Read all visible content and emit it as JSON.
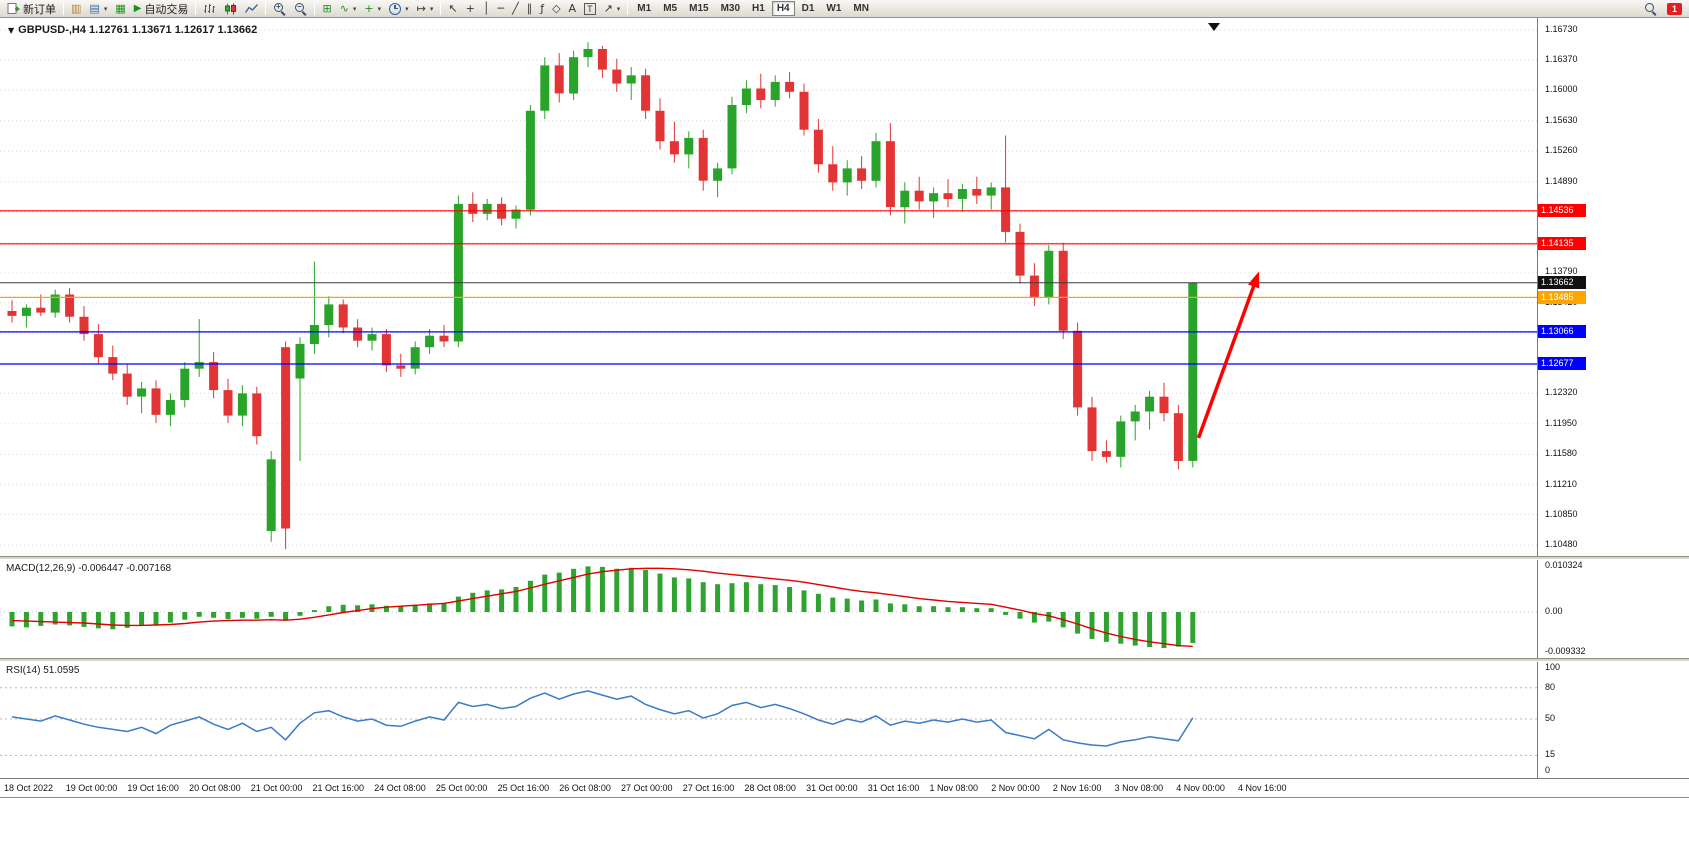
{
  "toolbar": {
    "new_order": "新订单",
    "auto_trading": "自动交易",
    "timeframes": [
      "M1",
      "M5",
      "M15",
      "M30",
      "H1",
      "H4",
      "D1",
      "W1",
      "MN"
    ],
    "active_timeframe": "H4",
    "notification_count": "1",
    "icons": {
      "chart_window": "▥",
      "profiles": "▤",
      "data_window": "▦",
      "play": "▶",
      "tile_windows": "⊞",
      "indicators": "∿",
      "add_indicator": "+",
      "dropdown": "▾",
      "chart_shift": "↦",
      "cursor": "↖",
      "crosshair": "+",
      "vertical_line": "│",
      "horizontal_line": "─",
      "trendline": "╱",
      "channel": "∥",
      "fibonacci": "ƒ",
      "shapes": "◇",
      "text": "A",
      "text_label": "T",
      "arrows": "↗"
    }
  },
  "chart": {
    "title": "GBPUSD-,H4 1.12761 1.13671 1.12617 1.13662"
  },
  "macd": {
    "label": "MACD(12,26,9) -0.006447 -0.007168"
  },
  "rsi": {
    "label": "RSI(14) 51.0595"
  },
  "chart_data": [
    {
      "type": "candlestick",
      "symbol": "GBPUSD-",
      "timeframe": "H4",
      "open": "1.12761",
      "high": "1.13671",
      "low": "1.12617",
      "close": "1.13662",
      "ylim": [
        1.1048,
        1.1673
      ],
      "y_ticks": [
        "1.16730",
        "1.16370",
        "1.16000",
        "1.15630",
        "1.15260",
        "1.14890",
        "1.14520",
        "1.14150",
        "1.13790",
        "1.13420",
        "1.13050",
        "1.12680",
        "1.12320",
        "1.11950",
        "1.11580",
        "1.11210",
        "1.10850",
        "1.10480"
      ],
      "colors": {
        "up": "#29A329",
        "down": "#E23434",
        "grid": "#DCDCDC"
      },
      "levels": [
        {
          "label": "1.14536",
          "price": 1.14536,
          "color": "#FF0000"
        },
        {
          "label": "1.14135",
          "price": 1.14135,
          "color": "#FF0000"
        },
        {
          "label": "1.13662",
          "price": 1.13662,
          "color": "#3C3C3C",
          "badge": "#101010",
          "current": true
        },
        {
          "label": "1.13485",
          "price": 1.13485,
          "color": "#FFA500"
        },
        {
          "label": "1.13066",
          "price": 1.13066,
          "color": "#0000FF"
        },
        {
          "label": "1.12677",
          "price": 1.12677,
          "color": "#0000FF"
        }
      ],
      "annotation_arrow": {
        "color": "#FF0000",
        "from_bar": 82.4,
        "from_price": 1.1178,
        "to_bar": 86.6,
        "to_price": 1.138
      },
      "x_labels": [
        "18 Oct 2022",
        "19 Oct 00:00",
        "19 Oct 16:00",
        "20 Oct 08:00",
        "21 Oct 00:00",
        "21 Oct 16:00",
        "24 Oct 08:00",
        "25 Oct 00:00",
        "25 Oct 16:00",
        "26 Oct 08:00",
        "27 Oct 00:00",
        "27 Oct 16:00",
        "28 Oct 08:00",
        "31 Oct 00:00",
        "31 Oct 16:00",
        "1 Nov 08:00",
        "2 Nov 00:00",
        "2 Nov 16:00",
        "3 Nov 08:00",
        "4 Nov 00:00",
        "4 Nov 16:00"
      ],
      "candles": [
        [
          1.1332,
          1.1345,
          1.1318,
          1.1326
        ],
        [
          1.1326,
          1.134,
          1.1312,
          1.1336
        ],
        [
          1.1336,
          1.1352,
          1.1326,
          1.133
        ],
        [
          1.133,
          1.1358,
          1.1324,
          1.1352
        ],
        [
          1.1352,
          1.136,
          1.1318,
          1.1325
        ],
        [
          1.1325,
          1.1338,
          1.1296,
          1.1304
        ],
        [
          1.1304,
          1.1316,
          1.1268,
          1.1276
        ],
        [
          1.1276,
          1.129,
          1.1248,
          1.1256
        ],
        [
          1.1256,
          1.1268,
          1.1218,
          1.1228
        ],
        [
          1.1228,
          1.1246,
          1.1208,
          1.1238
        ],
        [
          1.1238,
          1.1248,
          1.1196,
          1.1206
        ],
        [
          1.1206,
          1.1232,
          1.1192,
          1.1224
        ],
        [
          1.1224,
          1.127,
          1.1215,
          1.1262
        ],
        [
          1.1262,
          1.1322,
          1.1252,
          1.127
        ],
        [
          1.127,
          1.1282,
          1.1226,
          1.1236
        ],
        [
          1.1236,
          1.125,
          1.1196,
          1.1205
        ],
        [
          1.1205,
          1.1242,
          1.1192,
          1.1232
        ],
        [
          1.1232,
          1.124,
          1.117,
          1.118
        ],
        [
          1.1065,
          1.1162,
          1.1052,
          1.1152
        ],
        [
          1.1288,
          1.1295,
          1.1043,
          1.1068
        ],
        [
          1.125,
          1.13,
          1.115,
          1.1292
        ],
        [
          1.1292,
          1.1392,
          1.128,
          1.1315
        ],
        [
          1.1315,
          1.135,
          1.13,
          1.134
        ],
        [
          1.134,
          1.1346,
          1.1305,
          1.1312
        ],
        [
          1.1312,
          1.1322,
          1.1288,
          1.1296
        ],
        [
          1.1296,
          1.1312,
          1.1284,
          1.1304
        ],
        [
          1.1304,
          1.131,
          1.1258,
          1.1266
        ],
        [
          1.1266,
          1.128,
          1.1252,
          1.1262
        ],
        [
          1.1262,
          1.1295,
          1.1255,
          1.1288
        ],
        [
          1.1288,
          1.131,
          1.128,
          1.1302
        ],
        [
          1.1302,
          1.1315,
          1.1288,
          1.1295
        ],
        [
          1.1295,
          1.1472,
          1.1288,
          1.1462
        ],
        [
          1.1462,
          1.1476,
          1.144,
          1.145
        ],
        [
          1.145,
          1.1468,
          1.1442,
          1.1462
        ],
        [
          1.1462,
          1.147,
          1.1436,
          1.1444
        ],
        [
          1.1444,
          1.146,
          1.1432,
          1.1455
        ],
        [
          1.1455,
          1.1582,
          1.1448,
          1.1575
        ],
        [
          1.1575,
          1.164,
          1.1565,
          1.163
        ],
        [
          1.163,
          1.1645,
          1.1585,
          1.1596
        ],
        [
          1.1596,
          1.1648,
          1.1588,
          1.164
        ],
        [
          1.164,
          1.1658,
          1.1628,
          1.165
        ],
        [
          1.165,
          1.1654,
          1.1615,
          1.1625
        ],
        [
          1.1625,
          1.1638,
          1.1598,
          1.1608
        ],
        [
          1.1608,
          1.1628,
          1.1588,
          1.1618
        ],
        [
          1.1618,
          1.1626,
          1.1565,
          1.1575
        ],
        [
          1.1575,
          1.159,
          1.1528,
          1.1538
        ],
        [
          1.1538,
          1.1562,
          1.1512,
          1.1522
        ],
        [
          1.1522,
          1.155,
          1.1505,
          1.1542
        ],
        [
          1.1542,
          1.1552,
          1.1478,
          1.149
        ],
        [
          1.149,
          1.1512,
          1.147,
          1.1505
        ],
        [
          1.1505,
          1.1592,
          1.1498,
          1.1582
        ],
        [
          1.1582,
          1.1612,
          1.1572,
          1.1602
        ],
        [
          1.1602,
          1.162,
          1.1578,
          1.1588
        ],
        [
          1.1588,
          1.1618,
          1.158,
          1.161
        ],
        [
          1.161,
          1.1622,
          1.159,
          1.1598
        ],
        [
          1.1598,
          1.1608,
          1.1545,
          1.1552
        ],
        [
          1.1552,
          1.1565,
          1.15,
          1.151
        ],
        [
          1.151,
          1.1532,
          1.1478,
          1.1488
        ],
        [
          1.1488,
          1.1515,
          1.1472,
          1.1505
        ],
        [
          1.1505,
          1.152,
          1.148,
          1.149
        ],
        [
          1.149,
          1.1548,
          1.1482,
          1.1538
        ],
        [
          1.1538,
          1.156,
          1.1448,
          1.1458
        ],
        [
          1.1458,
          1.1488,
          1.1438,
          1.1478
        ],
        [
          1.1478,
          1.1495,
          1.1455,
          1.1465
        ],
        [
          1.1465,
          1.1482,
          1.1445,
          1.1475
        ],
        [
          1.1475,
          1.1492,
          1.1458,
          1.1468
        ],
        [
          1.1468,
          1.1486,
          1.1452,
          1.148
        ],
        [
          1.148,
          1.1495,
          1.1462,
          1.1472
        ],
        [
          1.1472,
          1.1488,
          1.1455,
          1.1482
        ],
        [
          1.1482,
          1.1545,
          1.1415,
          1.1428
        ],
        [
          1.1428,
          1.1438,
          1.1365,
          1.1375
        ],
        [
          1.1375,
          1.139,
          1.1338,
          1.1348
        ],
        [
          1.1348,
          1.1412,
          1.134,
          1.1405
        ],
        [
          1.1405,
          1.1415,
          1.1298,
          1.1308
        ],
        [
          1.1308,
          1.1318,
          1.1205,
          1.1215
        ],
        [
          1.1215,
          1.1228,
          1.115,
          1.1162
        ],
        [
          1.1162,
          1.1175,
          1.1148,
          1.1155
        ],
        [
          1.1155,
          1.1205,
          1.1142,
          1.1198
        ],
        [
          1.1198,
          1.1218,
          1.1175,
          1.121
        ],
        [
          1.121,
          1.1235,
          1.1188,
          1.1228
        ],
        [
          1.1228,
          1.1245,
          1.1198,
          1.1208
        ],
        [
          1.1208,
          1.1218,
          1.114,
          1.115
        ],
        [
          1.115,
          1.13671,
          1.1142,
          1.13662
        ]
      ]
    },
    {
      "type": "macd",
      "title": "MACD(12,26,9)",
      "values": [
        "-0.006447",
        "-0.007168"
      ],
      "y_ticks": [
        {
          "label": "0.010324",
          "value": 0.010324
        },
        {
          "label": "0.00",
          "value": 0
        },
        {
          "label": "-0.009332",
          "value": -0.009332
        }
      ],
      "colors": {
        "histogram": "#2FA32F",
        "signal": "#E00000"
      },
      "histogram": [
        -0.003,
        -0.0032,
        -0.0029,
        -0.0026,
        -0.0028,
        -0.0031,
        -0.0034,
        -0.0036,
        -0.0033,
        -0.0028,
        -0.0026,
        -0.0022,
        -0.0016,
        -0.001,
        -0.0012,
        -0.0015,
        -0.0012,
        -0.0014,
        -0.001,
        -0.0018,
        -0.0008,
        0.0004,
        0.0012,
        0.0015,
        0.0014,
        0.0016,
        0.0013,
        0.0012,
        0.0015,
        0.0018,
        0.0019,
        0.0032,
        0.004,
        0.0045,
        0.0047,
        0.0052,
        0.0065,
        0.0078,
        0.0082,
        0.009,
        0.0095,
        0.0094,
        0.009,
        0.0092,
        0.0088,
        0.008,
        0.0072,
        0.007,
        0.0062,
        0.0058,
        0.006,
        0.0062,
        0.0058,
        0.0056,
        0.0052,
        0.0045,
        0.0038,
        0.003,
        0.0028,
        0.0024,
        0.0026,
        0.0018,
        0.0016,
        0.0012,
        0.0012,
        0.001,
        0.001,
        0.0008,
        0.0008,
        -0.0006,
        -0.0014,
        -0.0022,
        -0.002,
        -0.0032,
        -0.0045,
        -0.0056,
        -0.0062,
        -0.0066,
        -0.007,
        -0.0073,
        -0.0075,
        -0.0072,
        -0.006447
      ],
      "signal": [
        -0.0018,
        -0.0019,
        -0.002,
        -0.0021,
        -0.0022,
        -0.0023,
        -0.0025,
        -0.0027,
        -0.0028,
        -0.0028,
        -0.0027,
        -0.0026,
        -0.0024,
        -0.0021,
        -0.0019,
        -0.0018,
        -0.0017,
        -0.0017,
        -0.0016,
        -0.0017,
        -0.0015,
        -0.0011,
        -0.0006,
        -0.0001,
        0.0003,
        0.0007,
        0.001,
        0.0012,
        0.0014,
        0.0016,
        0.0018,
        0.0023,
        0.0028,
        0.0033,
        0.0038,
        0.0043,
        0.005,
        0.0058,
        0.0065,
        0.0072,
        0.0079,
        0.0084,
        0.0087,
        0.009,
        0.0091,
        0.0091,
        0.009,
        0.0088,
        0.0085,
        0.0081,
        0.0078,
        0.0075,
        0.0072,
        0.0069,
        0.0066,
        0.0062,
        0.0057,
        0.0052,
        0.0047,
        0.0043,
        0.004,
        0.0036,
        0.0032,
        0.0028,
        0.0025,
        0.0022,
        0.002,
        0.0018,
        0.0016,
        0.001,
        0.0004,
        -0.0003,
        -0.0008,
        -0.0016,
        -0.0025,
        -0.0035,
        -0.0044,
        -0.0051,
        -0.0057,
        -0.0062,
        -0.0066,
        -0.007,
        -0.007168
      ]
    },
    {
      "type": "rsi",
      "title": "RSI(14)",
      "value": "51.0595",
      "levels": [
        80,
        50,
        15
      ],
      "y_ticks": [
        "100",
        "80",
        "50",
        "15",
        "0"
      ],
      "color": "#3B7BC8",
      "values": [
        52,
        50,
        48,
        53,
        49,
        45,
        42,
        40,
        38,
        42,
        36,
        44,
        48,
        52,
        45,
        40,
        46,
        38,
        42,
        30,
        46,
        56,
        58,
        52,
        48,
        50,
        44,
        43,
        48,
        52,
        49,
        66,
        62,
        64,
        60,
        62,
        70,
        75,
        69,
        74,
        77,
        73,
        69,
        72,
        64,
        59,
        55,
        58,
        51,
        55,
        63,
        66,
        61,
        64,
        60,
        55,
        49,
        45,
        50,
        47,
        53,
        44,
        48,
        46,
        49,
        47,
        50,
        47,
        49,
        37,
        34,
        31,
        40,
        30,
        27,
        25,
        24,
        28,
        30,
        33,
        31,
        29,
        51.0595
      ]
    }
  ]
}
